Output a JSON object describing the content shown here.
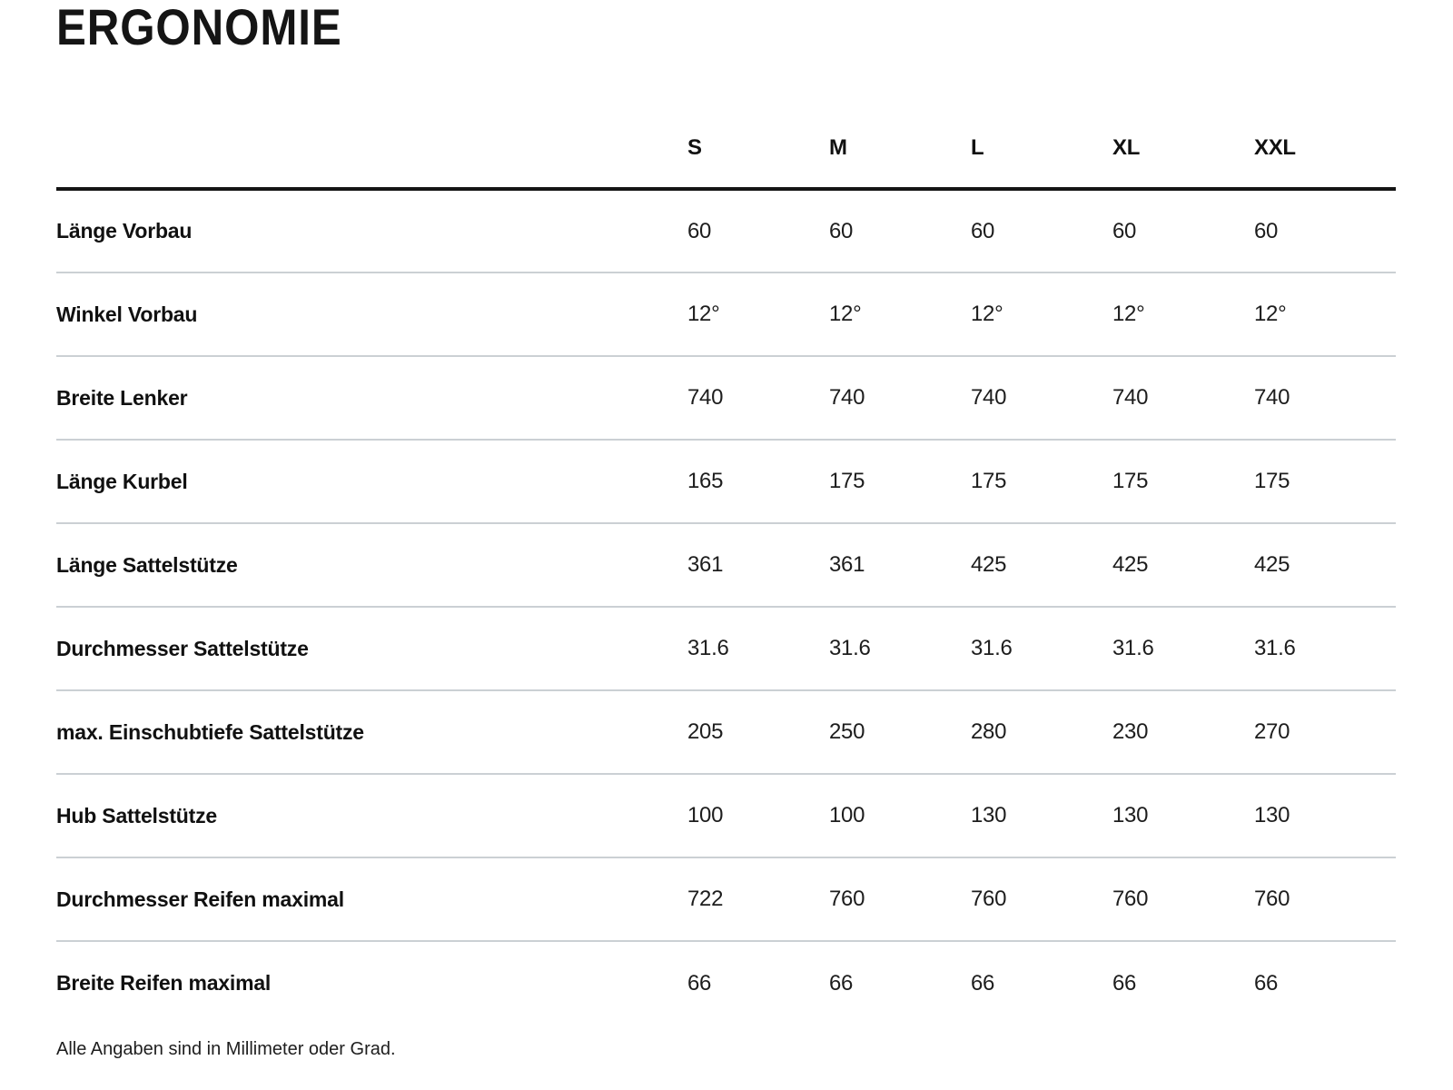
{
  "page": {
    "title": "ERGONOMIE",
    "footnote": "Alle Angaben sind in Millimeter oder Grad."
  },
  "table": {
    "columns": [
      "S",
      "M",
      "L",
      "XL",
      "XXL"
    ],
    "rows": [
      {
        "label": "Länge Vorbau",
        "values": [
          "60",
          "60",
          "60",
          "60",
          "60"
        ]
      },
      {
        "label": "Winkel Vorbau",
        "values": [
          "12°",
          "12°",
          "12°",
          "12°",
          "12°"
        ]
      },
      {
        "label": "Breite Lenker",
        "values": [
          "740",
          "740",
          "740",
          "740",
          "740"
        ]
      },
      {
        "label": "Länge Kurbel",
        "values": [
          "165",
          "175",
          "175",
          "175",
          "175"
        ]
      },
      {
        "label": "Länge Sattelstütze",
        "values": [
          "361",
          "361",
          "425",
          "425",
          "425"
        ]
      },
      {
        "label": "Durchmesser Sattelstütze",
        "values": [
          "31.6",
          "31.6",
          "31.6",
          "31.6",
          "31.6"
        ]
      },
      {
        "label": "max. Einschubtiefe Sattelstütze",
        "values": [
          "205",
          "250",
          "280",
          "230",
          "270"
        ]
      },
      {
        "label": "Hub Sattelstütze",
        "values": [
          "100",
          "100",
          "130",
          "130",
          "130"
        ]
      },
      {
        "label": "Durchmesser Reifen maximal",
        "values": [
          "722",
          "760",
          "760",
          "760",
          "760"
        ]
      },
      {
        "label": "Breite Reifen maximal",
        "values": [
          "66",
          "66",
          "66",
          "66",
          "66"
        ]
      }
    ]
  },
  "colors": {
    "text": "#1a1a1a",
    "header_rule": "#141414",
    "separator": "#cbd0d4",
    "background": "#ffffff"
  }
}
